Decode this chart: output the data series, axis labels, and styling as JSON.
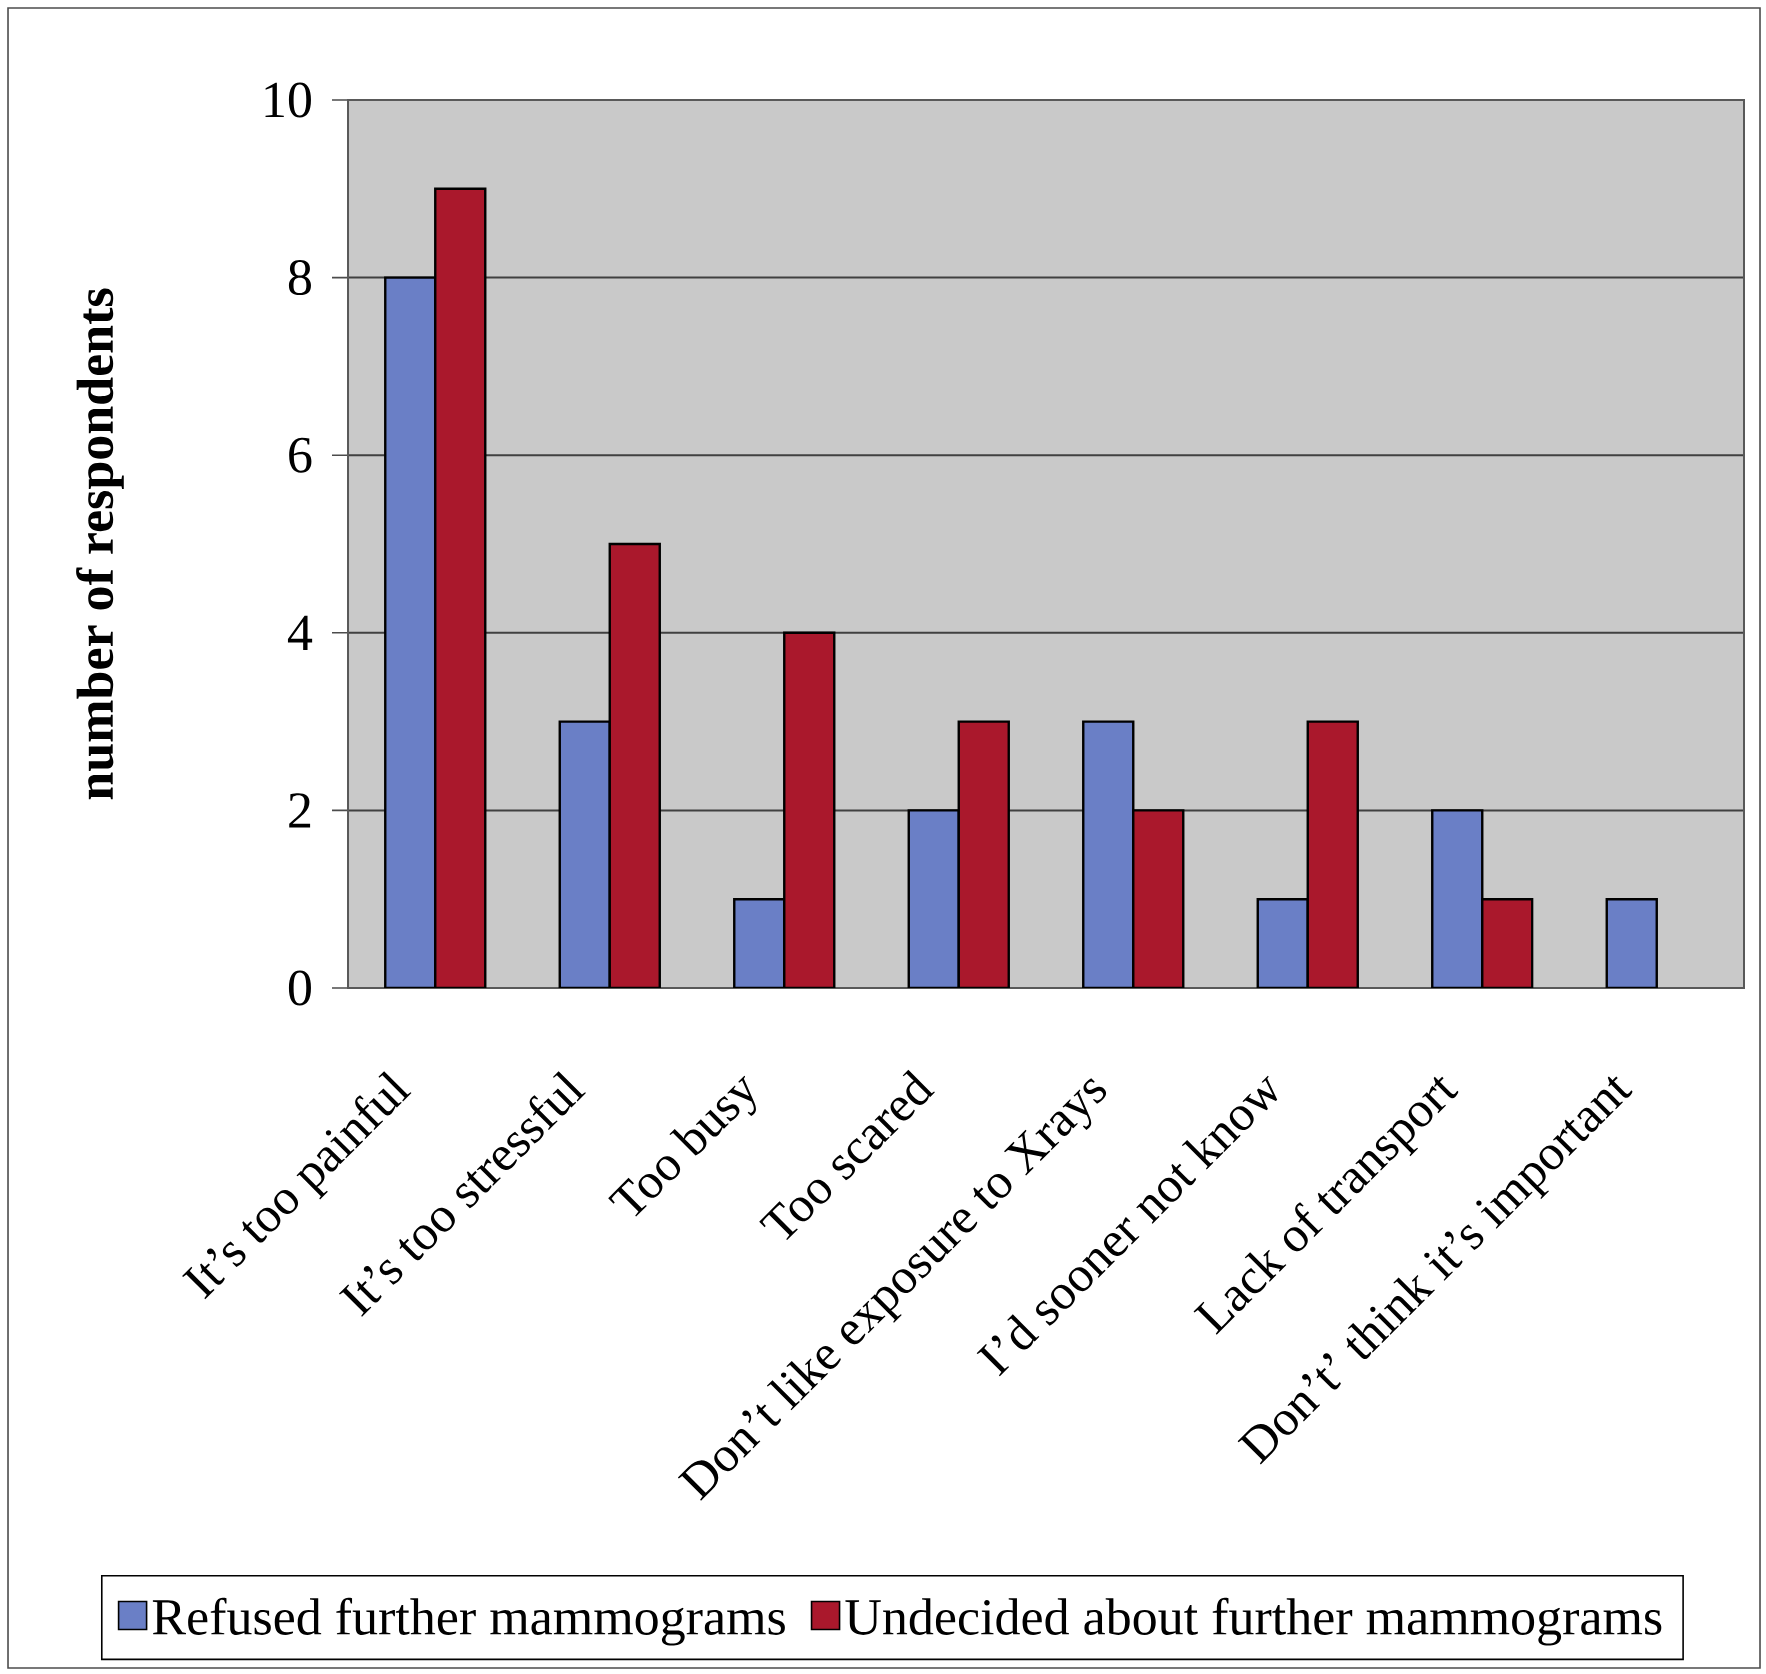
{
  "chart_data": {
    "type": "bar",
    "categories": [
      "It’s too painful",
      "It’s too stressful",
      "Too busy",
      "Too scared",
      "Don’t like exposure to Xrays",
      "I’d sooner not know",
      "Lack of transport",
      "Don’t’ think it’s important"
    ],
    "series": [
      {
        "name": "Refused further mammograms",
        "color": "#6a7fc6",
        "values": [
          8,
          3,
          1,
          2,
          3,
          1,
          2,
          1
        ]
      },
      {
        "name": "Undecided about further mammograms",
        "color": "#aa182c",
        "values": [
          9,
          5,
          4,
          3,
          2,
          3,
          1,
          null
        ]
      }
    ],
    "ylabel": "number of respondents",
    "ylim": [
      0,
      10
    ],
    "yticks": [
      0,
      2,
      4,
      6,
      8,
      10
    ],
    "grid": "y",
    "legend": "bottom"
  }
}
